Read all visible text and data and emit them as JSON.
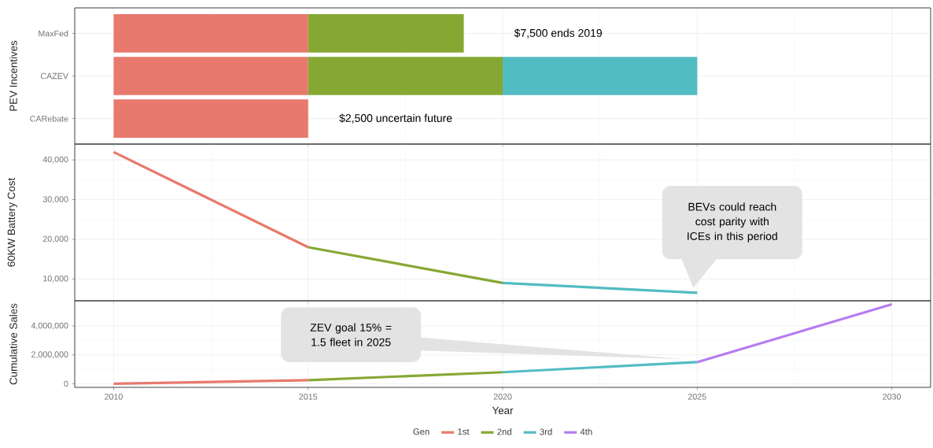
{
  "chart_data": [
    {
      "type": "bar",
      "orientation": "horizontal",
      "ylabel": "PEV Incentives",
      "categories": [
        "MaxFed",
        "CAZEV",
        "CARebate"
      ],
      "series": [
        {
          "color": "#E8796D",
          "base": [
            2010,
            2010,
            2010
          ],
          "values": [
            5,
            5,
            5
          ]
        },
        {
          "color": "#86A833",
          "base": [
            2015,
            2015,
            null
          ],
          "values": [
            4,
            5,
            null
          ]
        },
        {
          "color": "#52BCC3",
          "base": [
            null,
            2020,
            null
          ],
          "values": [
            null,
            5,
            null
          ]
        }
      ],
      "xlim": [
        2009,
        2031
      ],
      "xticks": [
        2010,
        2015,
        2020,
        2025,
        2030
      ],
      "tick_labels": "y",
      "grid": true,
      "annotations": [
        "$7,500 ends 2019",
        "$2,500 uncertain future"
      ]
    },
    {
      "type": "line",
      "ylabel": "60KW Battery Cost",
      "series": [
        {
          "color": "#E8796D",
          "x": [
            2010,
            2015
          ],
          "values": [
            42000,
            18000
          ]
        },
        {
          "color": "#86A833",
          "x": [
            2015,
            2020
          ],
          "values": [
            18000,
            9000
          ]
        },
        {
          "color": "#52BCC3",
          "x": [
            2020,
            2025
          ],
          "values": [
            9000,
            6500
          ]
        }
      ],
      "xlim": [
        2009,
        2031
      ],
      "xticks": [
        2010,
        2015,
        2020,
        2025,
        2030
      ],
      "ylim": [
        4500,
        44000
      ],
      "yticks": [
        {
          "value": 10000,
          "label": "10,000"
        },
        {
          "value": 20000,
          "label": "20,000"
        },
        {
          "value": 30000,
          "label": "30,000"
        },
        {
          "value": 40000,
          "label": "40,000"
        }
      ],
      "tick_labels": "y",
      "grid": true,
      "annotations": [
        "BEVs could reach cost parity with ICEs in this period"
      ]
    },
    {
      "type": "line",
      "xlabel": "Year",
      "ylabel": "Cumulative Sales",
      "legend": "bottom",
      "legend_title": "Gen",
      "series": [
        {
          "name": "1st",
          "color": "#E8796D",
          "x": [
            2010,
            2015
          ],
          "values": [
            0,
            250000
          ]
        },
        {
          "name": "2nd",
          "color": "#86A833",
          "x": [
            2015,
            2020
          ],
          "values": [
            250000,
            800000
          ]
        },
        {
          "name": "3rd",
          "color": "#52BCC3",
          "x": [
            2020,
            2025
          ],
          "values": [
            800000,
            1500000
          ]
        },
        {
          "name": "4th",
          "color": "#B67CF0",
          "x": [
            2025,
            2030
          ],
          "values": [
            1500000,
            5500000
          ]
        }
      ],
      "xlim": [
        2009,
        2031
      ],
      "xticks": [
        2010,
        2015,
        2020,
        2025,
        2030
      ],
      "ylim": [
        -250000,
        5750000
      ],
      "yticks": [
        0,
        {
          "value": 2000000,
          "label": "2,000,000"
        },
        {
          "value": 4000000,
          "label": "4,000,000"
        }
      ],
      "grid": true,
      "annotations": [
        "ZEV goal 15% = 1.5 fleet in 2025"
      ]
    }
  ]
}
